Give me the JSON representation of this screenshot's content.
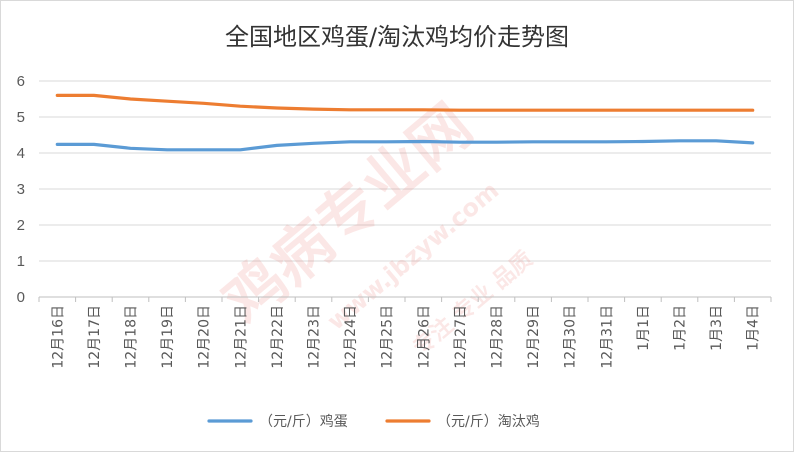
{
  "chart_data": {
    "type": "line",
    "title": "全国地区鸡蛋/淘汰鸡均价走势图",
    "categories": [
      "12月16日",
      "12月17日",
      "12月18日",
      "12月19日",
      "12月20日",
      "12月21日",
      "12月22日",
      "12月23日",
      "12月24日",
      "12月25日",
      "12月26日",
      "12月27日",
      "12月28日",
      "12月29日",
      "12月30日",
      "12月31日",
      "1月1日",
      "1月2日",
      "1月3日",
      "1月4日"
    ],
    "ylim": [
      0,
      6
    ],
    "yticks": [
      "0",
      "1",
      "2",
      "3",
      "4",
      "5",
      "6"
    ],
    "grid": true,
    "legend_position": "bottom",
    "series": [
      {
        "name": "（元/斤）鸡蛋",
        "color": "#5b9bd5",
        "values": [
          4.24,
          4.24,
          4.13,
          4.09,
          4.09,
          4.09,
          4.21,
          4.27,
          4.31,
          4.31,
          4.32,
          4.3,
          4.3,
          4.31,
          4.31,
          4.31,
          4.32,
          4.34,
          4.34,
          4.28
        ]
      },
      {
        "name": "（元/斤）淘汰鸡",
        "color": "#ed7d31",
        "values": [
          5.6,
          5.6,
          5.5,
          5.44,
          5.38,
          5.3,
          5.25,
          5.22,
          5.2,
          5.2,
          5.2,
          5.19,
          5.19,
          5.19,
          5.19,
          5.19,
          5.19,
          5.19,
          5.19,
          5.19
        ]
      }
    ]
  },
  "watermark": {
    "brand": "鸡病专业网",
    "url": "www.jbzyw.com",
    "slogan": "专注 专业 品质",
    "color": "#e8706b"
  }
}
